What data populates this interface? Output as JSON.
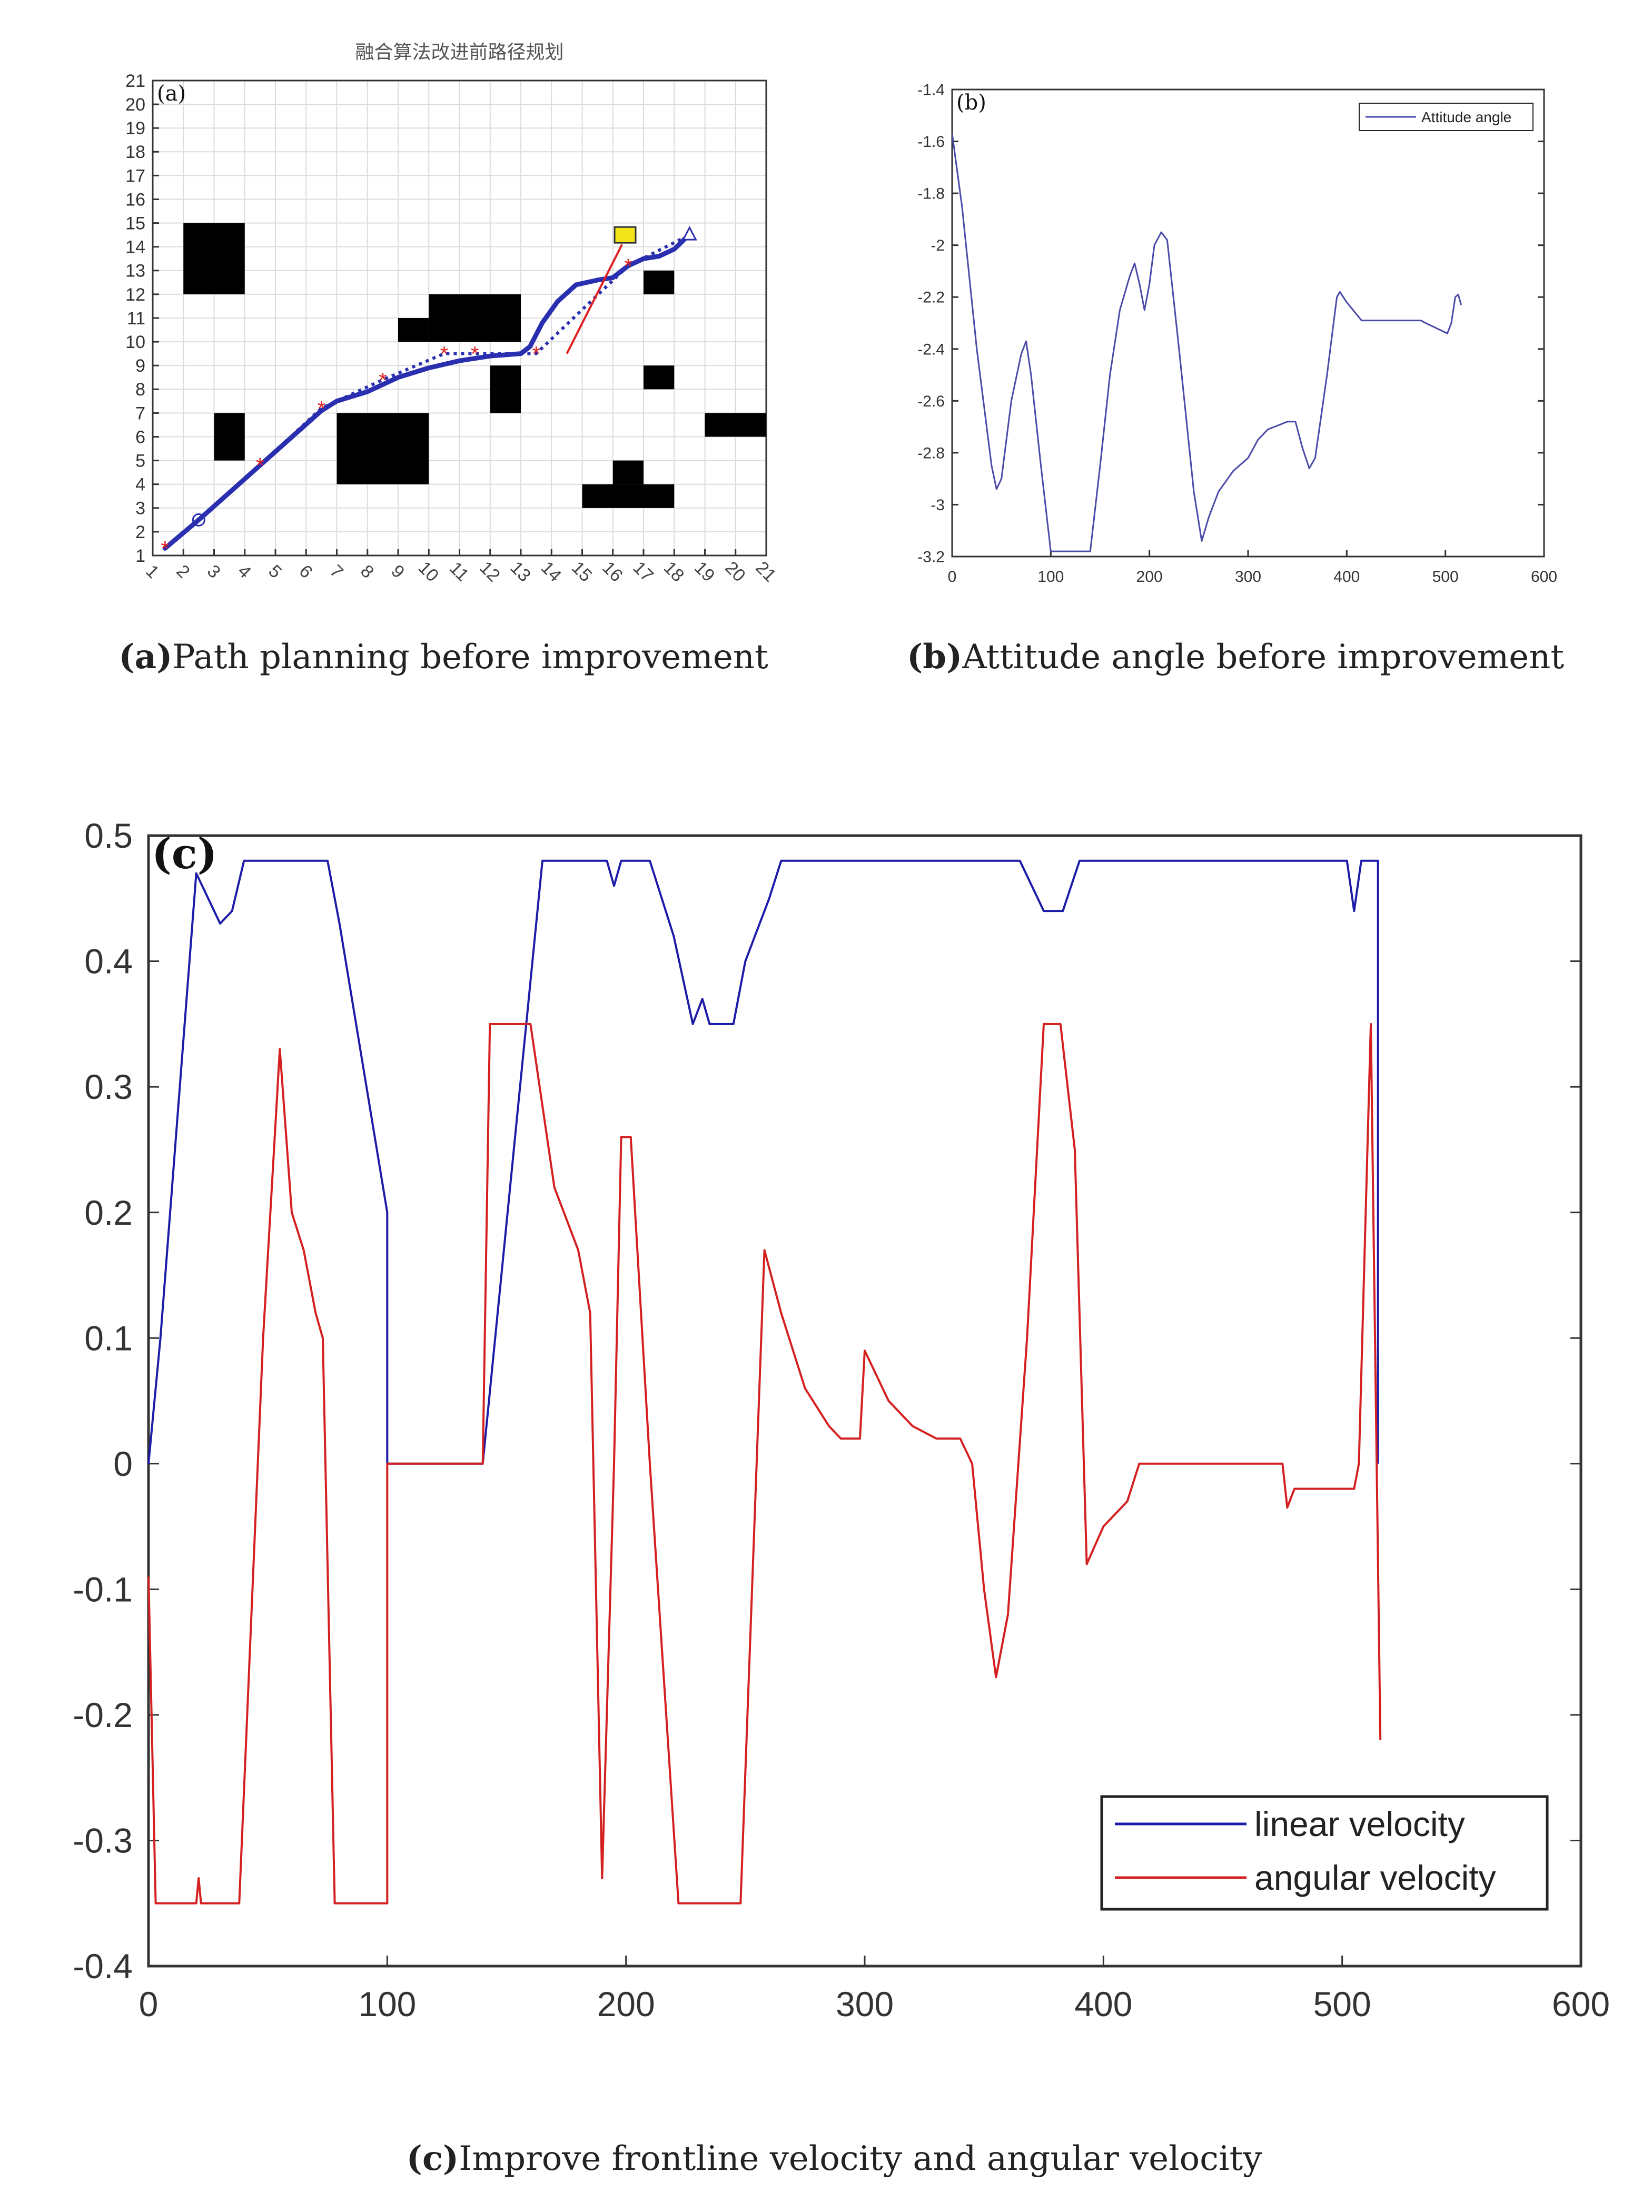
{
  "captions": {
    "a": {
      "label": "(a)",
      "text": "Path planning before improvement"
    },
    "b": {
      "label": "(b)",
      "text": "Attitude angle before improvement"
    },
    "c": {
      "label": "(c)",
      "text": "Improve frontline velocity and angular velocity"
    }
  },
  "chart_data": [
    {
      "id": "a",
      "type": "scatter",
      "title": "融合算法改进前路径规划",
      "panel_label": "(a)",
      "xlim": [
        1,
        21
      ],
      "ylim": [
        1,
        21
      ],
      "grid": true,
      "xticks": [
        1,
        2,
        3,
        4,
        5,
        6,
        7,
        8,
        9,
        10,
        11,
        12,
        13,
        14,
        15,
        16,
        17,
        18,
        19,
        20,
        21
      ],
      "yticks": [
        1,
        2,
        3,
        4,
        5,
        6,
        7,
        8,
        9,
        10,
        11,
        12,
        13,
        14,
        15,
        16,
        17,
        18,
        19,
        20,
        21
      ],
      "obstacles": [
        [
          2,
          12,
          4,
          15
        ],
        [
          3,
          5,
          4,
          7
        ],
        [
          7,
          4,
          10,
          7
        ],
        [
          9,
          10,
          10,
          11
        ],
        [
          10,
          10,
          13,
          12
        ],
        [
          12,
          7,
          13,
          9
        ],
        [
          17,
          12,
          18,
          13
        ],
        [
          17,
          8,
          18,
          9
        ],
        [
          19,
          6,
          21,
          7
        ],
        [
          15,
          3,
          18,
          4
        ],
        [
          16,
          4,
          17,
          5
        ]
      ],
      "waypoints": [
        [
          1.4,
          1.3
        ],
        [
          4.5,
          4.8
        ],
        [
          6.5,
          7.2
        ],
        [
          8.5,
          8.4
        ],
        [
          10.5,
          9.5
        ],
        [
          11.5,
          9.5
        ],
        [
          13.5,
          9.5
        ],
        [
          16.5,
          13.2
        ]
      ],
      "planned_path": [
        [
          1.4,
          1.3
        ],
        [
          2.5,
          2.5
        ],
        [
          4.5,
          4.8
        ],
        [
          6.5,
          7.2
        ],
        [
          8.5,
          8.4
        ],
        [
          10.5,
          9.5
        ],
        [
          11.5,
          9.5
        ],
        [
          13.5,
          9.5
        ],
        [
          16.5,
          13.2
        ],
        [
          18.5,
          14.5
        ]
      ],
      "smooth_path": [
        [
          1.4,
          1.3
        ],
        [
          2.5,
          2.5
        ],
        [
          4.5,
          4.8
        ],
        [
          6.5,
          7.1
        ],
        [
          7,
          7.5
        ],
        [
          8,
          7.9
        ],
        [
          9,
          8.5
        ],
        [
          10,
          8.9
        ],
        [
          11,
          9.2
        ],
        [
          12,
          9.4
        ],
        [
          13,
          9.5
        ],
        [
          13.3,
          9.8
        ],
        [
          13.7,
          10.8
        ],
        [
          14.2,
          11.7
        ],
        [
          14.8,
          12.4
        ],
        [
          15.5,
          12.6
        ],
        [
          16,
          12.7
        ],
        [
          16.5,
          13.2
        ],
        [
          17,
          13.5
        ],
        [
          17.5,
          13.6
        ],
        [
          18,
          13.9
        ],
        [
          18.4,
          14.4
        ]
      ],
      "start_marker": [
        2.5,
        2.5
      ],
      "goal_marker": [
        18.5,
        14.5
      ],
      "moving_obstacle": [
        16.4,
        14.5
      ],
      "obstacle_heading": [
        [
          14.5,
          9.5
        ],
        [
          16.3,
          14.1
        ]
      ],
      "colors": {
        "path": "#2a2fb0",
        "waypoint": "#e02020",
        "obstacle": "#000000",
        "moving": "#f2e31a",
        "heading": "#e02020"
      }
    },
    {
      "id": "b",
      "type": "line",
      "panel_label": "(b)",
      "xlim": [
        0,
        600
      ],
      "ylim": [
        -3.2,
        -1.4
      ],
      "xticks": [
        0,
        100,
        200,
        300,
        400,
        500,
        600
      ],
      "yticks": [
        -1.4,
        -1.6,
        -1.8,
        -2,
        -2.2,
        -2.4,
        -2.6,
        -2.8,
        -3,
        -3.2
      ],
      "legend": "top-right",
      "series": [
        {
          "name": "Attitude angle",
          "color": "#4a4aa8",
          "x": [
            0,
            10,
            25,
            40,
            45,
            50,
            60,
            70,
            75,
            80,
            90,
            100,
            140,
            150,
            160,
            170,
            180,
            185,
            190,
            195,
            200,
            205,
            212,
            218,
            230,
            245,
            253,
            260,
            270,
            285,
            300,
            310,
            320,
            340,
            348,
            355,
            362,
            368,
            380,
            390,
            393,
            400,
            415,
            475,
            480,
            502,
            506,
            510,
            513,
            516
          ],
          "y": [
            -1.57,
            -1.85,
            -2.4,
            -2.85,
            -2.94,
            -2.9,
            -2.6,
            -2.42,
            -2.37,
            -2.5,
            -2.85,
            -3.18,
            -3.18,
            -2.85,
            -2.5,
            -2.25,
            -2.12,
            -2.07,
            -2.15,
            -2.25,
            -2.15,
            -2.0,
            -1.95,
            -1.98,
            -2.4,
            -2.95,
            -3.14,
            -3.05,
            -2.95,
            -2.87,
            -2.82,
            -2.75,
            -2.71,
            -2.68,
            -2.68,
            -2.78,
            -2.86,
            -2.82,
            -2.5,
            -2.2,
            -2.18,
            -2.22,
            -2.29,
            -2.29,
            -2.3,
            -2.34,
            -2.3,
            -2.2,
            -2.19,
            -2.23
          ]
        }
      ]
    },
    {
      "id": "c",
      "type": "line",
      "panel_label": "(c)",
      "xlim": [
        0,
        600
      ],
      "ylim": [
        -0.4,
        0.5
      ],
      "xticks": [
        0,
        100,
        200,
        300,
        400,
        500,
        600
      ],
      "yticks": [
        0.5,
        0.4,
        0.3,
        0.2,
        0.1,
        0,
        -0.1,
        -0.2,
        -0.3,
        -0.4
      ],
      "legend": "bottom-right",
      "series": [
        {
          "name": "linear velocity",
          "color": "#1c1ca8",
          "x": [
            0,
            5,
            20,
            30,
            35,
            40,
            75,
            80,
            100,
            100,
            140,
            165,
            192,
            195,
            198,
            210,
            220,
            228,
            232,
            235,
            245,
            250,
            260,
            265,
            365,
            375,
            383,
            390,
            502,
            505,
            508,
            515,
            515
          ],
          "y": [
            0,
            0.1,
            0.47,
            0.43,
            0.44,
            0.48,
            0.48,
            0.43,
            0.2,
            0,
            0,
            0.48,
            0.48,
            0.46,
            0.48,
            0.48,
            0.42,
            0.35,
            0.37,
            0.35,
            0.35,
            0.4,
            0.45,
            0.48,
            0.48,
            0.44,
            0.44,
            0.48,
            0.48,
            0.44,
            0.48,
            0.48,
            0
          ]
        },
        {
          "name": "angular velocity",
          "color": "#d42020",
          "x": [
            0,
            3,
            20,
            21,
            22,
            38,
            48,
            55,
            60,
            65,
            70,
            73,
            78,
            100,
            100,
            140,
            143,
            160,
            170,
            180,
            185,
            190,
            195,
            198,
            202,
            210,
            222,
            248,
            258,
            265,
            275,
            285,
            290,
            298,
            300,
            305,
            310,
            320,
            330,
            340,
            345,
            350,
            355,
            360,
            368,
            375,
            382,
            388,
            393,
            400,
            410,
            415,
            475,
            477,
            480,
            505,
            507,
            512,
            516
          ],
          "y": [
            -0.09,
            -0.35,
            -0.35,
            -0.33,
            -0.35,
            -0.35,
            0.1,
            0.33,
            0.2,
            0.17,
            0.12,
            0.1,
            -0.35,
            -0.35,
            0,
            0,
            0.35,
            0.35,
            0.22,
            0.17,
            0.12,
            -0.33,
            0,
            0.26,
            0.26,
            0,
            -0.35,
            -0.35,
            0.17,
            0.12,
            0.06,
            0.03,
            0.02,
            0.02,
            0.09,
            0.07,
            0.05,
            0.03,
            0.02,
            0.02,
            0,
            -0.1,
            -0.17,
            -0.12,
            0.1,
            0.35,
            0.35,
            0.25,
            -0.08,
            -0.05,
            -0.03,
            0,
            0,
            -0.035,
            -0.02,
            -0.02,
            0,
            0.35,
            -0.22
          ]
        }
      ]
    }
  ]
}
